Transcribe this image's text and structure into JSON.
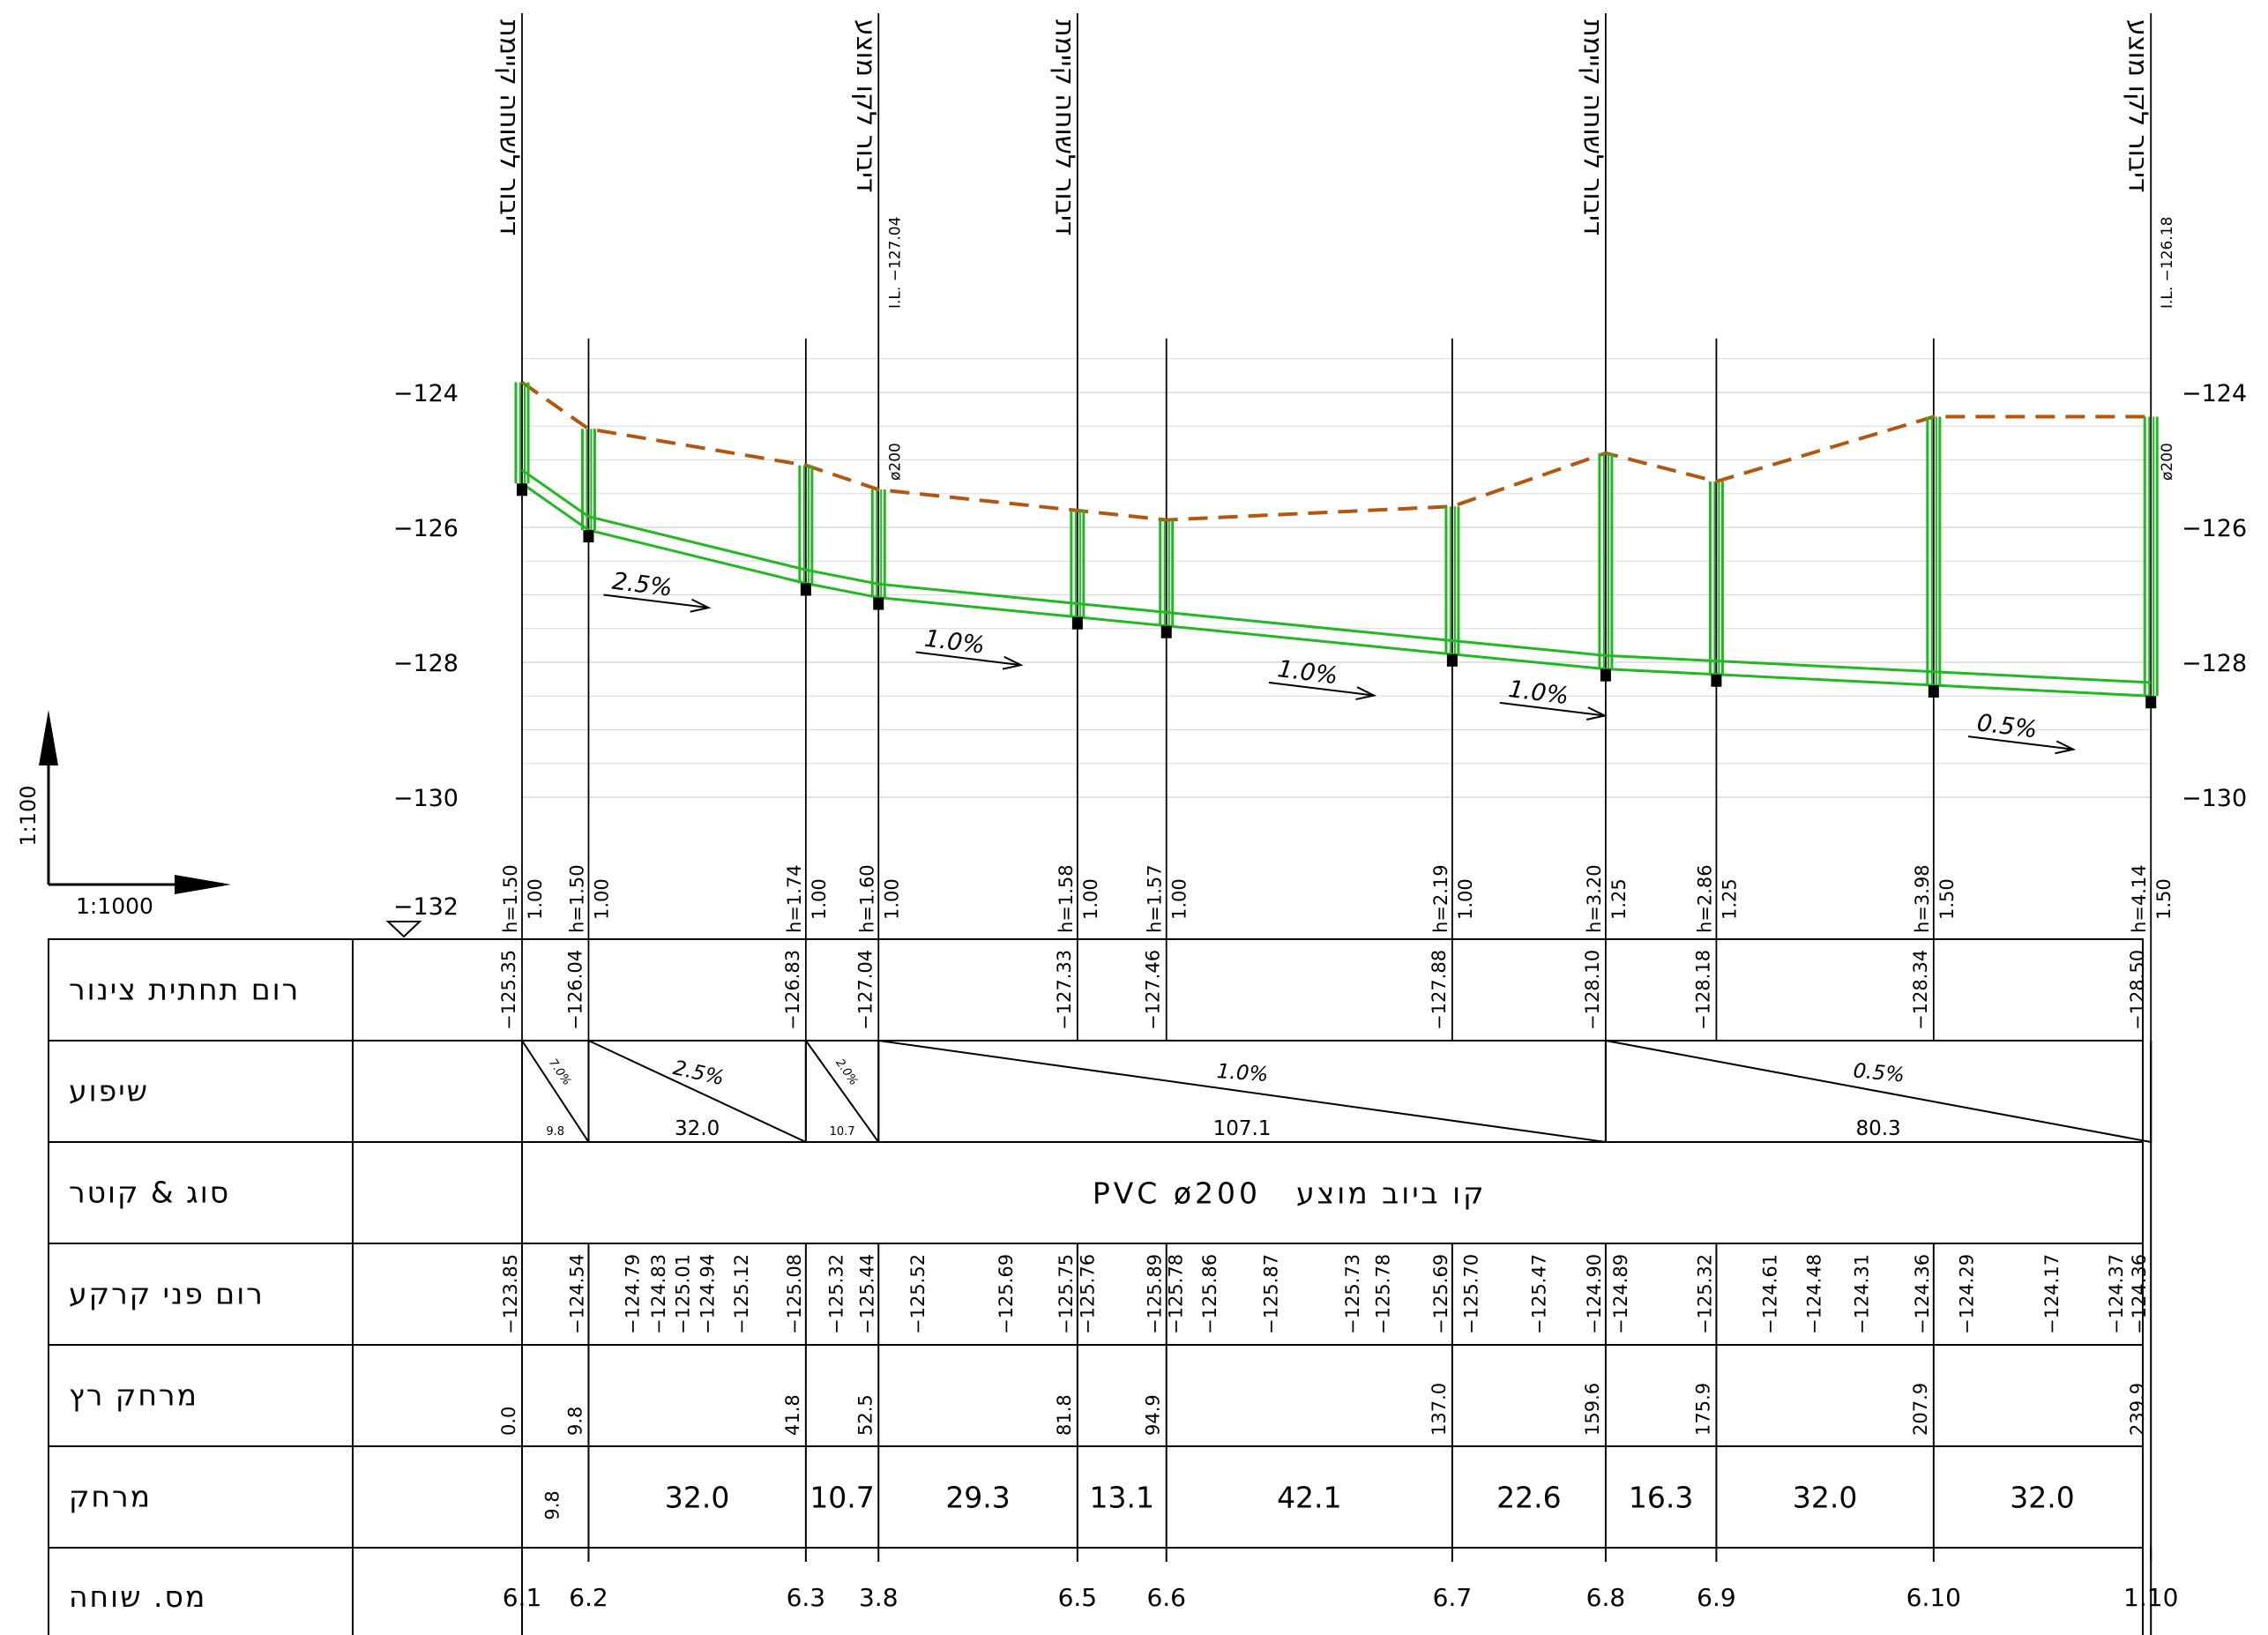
{
  "scale": {
    "vertical": "1:100",
    "horizontal": "1:1000"
  },
  "axis": {
    "ticks": [
      -124,
      -126,
      -128,
      -130
    ],
    "tick_labels": [
      "−124",
      "−126",
      "−128",
      "−130"
    ],
    "bottom_label": "−132"
  },
  "manholes": [
    {
      "id": "6.1",
      "dist": 0.0,
      "ground": -123.85,
      "invert": -125.35,
      "h": "h=1.50",
      "depth": "1.00",
      "label": "דיבור לשוחה קיימת"
    },
    {
      "id": "6.2",
      "dist": 9.8,
      "ground": -124.54,
      "invert": -126.04,
      "h": "h=1.50",
      "depth": "1.00",
      "label": ""
    },
    {
      "id": "6.3",
      "dist": 41.8,
      "ground": -125.08,
      "invert": -126.83,
      "h": "h=1.74",
      "depth": "1.00",
      "label": ""
    },
    {
      "id": "3.8",
      "dist": 52.5,
      "ground": -125.44,
      "invert": -127.04,
      "h": "h=1.60",
      "depth": "1.00",
      "label": "דיבור לקו מוצע",
      "il": "I.L. −127.04",
      "dia": "ø200"
    },
    {
      "id": "6.5",
      "dist": 81.8,
      "ground": -125.75,
      "invert": -127.33,
      "h": "h=1.58",
      "depth": "1.00",
      "label": "דיבור לשוחה קיימת"
    },
    {
      "id": "6.6",
      "dist": 94.9,
      "ground": -125.89,
      "invert": -127.46,
      "h": "h=1.57",
      "depth": "1.00",
      "label": ""
    },
    {
      "id": "6.7",
      "dist": 137.0,
      "ground": -125.69,
      "invert": -127.88,
      "h": "h=2.19",
      "depth": "1.00",
      "label": ""
    },
    {
      "id": "6.8",
      "dist": 159.6,
      "ground": -124.9,
      "invert": -128.1,
      "h": "h=3.20",
      "depth": "1.25",
      "label": "דיבור לשוחה קיימת"
    },
    {
      "id": "6.9",
      "dist": 175.9,
      "ground": -125.32,
      "invert": -128.18,
      "h": "h=2.86",
      "depth": "1.25",
      "label": ""
    },
    {
      "id": "6.10",
      "dist": 207.9,
      "ground": -124.36,
      "invert": -128.34,
      "h": "h=3.98",
      "depth": "1.50",
      "label": ""
    },
    {
      "id": "1.10",
      "dist": 239.9,
      "ground": -124.36,
      "invert": -128.5,
      "h": "h=4.14",
      "depth": "1.50",
      "label": "דיבור לקו מוצע",
      "il": "I.L. −126.18",
      "dia": "ø200"
    }
  ],
  "ground_labels": [
    {
      "dist": 0.0,
      "value": "−123.85"
    },
    {
      "dist": 9.8,
      "value": "−124.54"
    },
    {
      "dist": 18.0,
      "value": "−124.79"
    },
    {
      "dist": 21.8,
      "value": "−124.83"
    },
    {
      "dist": 25.4,
      "value": "−125.01"
    },
    {
      "dist": 29.0,
      "value": "−124.94"
    },
    {
      "dist": 34.0,
      "value": "−125.12"
    },
    {
      "dist": 41.8,
      "value": "−125.08"
    },
    {
      "dist": 48.0,
      "value": "−125.32"
    },
    {
      "dist": 52.5,
      "value": "−125.44"
    },
    {
      "dist": 60.0,
      "value": "−125.52"
    },
    {
      "dist": 73.0,
      "value": "−125.69"
    },
    {
      "dist": 81.8,
      "value": "−125.75"
    },
    {
      "dist": 85.0,
      "value": "−125.76"
    },
    {
      "dist": 94.9,
      "value": "−125.89"
    },
    {
      "dist": 98.0,
      "value": "−125.78"
    },
    {
      "dist": 103.0,
      "value": "−125.86"
    },
    {
      "dist": 112.0,
      "value": "−125.87"
    },
    {
      "dist": 124.0,
      "value": "−125.73"
    },
    {
      "dist": 128.5,
      "value": "−125.78"
    },
    {
      "dist": 137.0,
      "value": "−125.69"
    },
    {
      "dist": 141.5,
      "value": "−125.70"
    },
    {
      "dist": 151.5,
      "value": "−125.47"
    },
    {
      "dist": 159.6,
      "value": "−124.90"
    },
    {
      "dist": 163.5,
      "value": "−124.89"
    },
    {
      "dist": 175.9,
      "value": "−125.32"
    },
    {
      "dist": 185.5,
      "value": "−124.61"
    },
    {
      "dist": 192.0,
      "value": "−124.48"
    },
    {
      "dist": 199.0,
      "value": "−124.31"
    },
    {
      "dist": 207.9,
      "value": "−124.36"
    },
    {
      "dist": 214.5,
      "value": "−124.29"
    },
    {
      "dist": 227.0,
      "value": "−124.17"
    },
    {
      "dist": 236.5,
      "value": "−124.37"
    },
    {
      "dist": 239.9,
      "value": "−124.36"
    }
  ],
  "slope_sections": [
    {
      "from": 0.0,
      "to": 9.8,
      "slope": "7.0%",
      "length": "9.8",
      "small": true
    },
    {
      "from": 9.8,
      "to": 41.8,
      "slope": "2.5%",
      "length": "32.0",
      "small": false
    },
    {
      "from": 41.8,
      "to": 52.5,
      "slope": "2.0%",
      "length": "10.7",
      "small": true
    },
    {
      "from": 52.5,
      "to": 159.6,
      "slope": "1.0%",
      "length": "107.1",
      "small": false
    },
    {
      "from": 159.6,
      "to": 239.9,
      "slope": "0.5%",
      "length": "80.3",
      "small": false
    }
  ],
  "profile_slope_labels": [
    {
      "dist": 12.0,
      "elev": -127.0,
      "text": "2.5%"
    },
    {
      "dist": 58.0,
      "elev": -127.85,
      "text": "1.0%"
    },
    {
      "dist": 110.0,
      "elev": -128.3,
      "text": "1.0%"
    },
    {
      "dist": 144.0,
      "elev": -128.6,
      "text": "1.0%"
    },
    {
      "dist": 213.0,
      "elev": -129.1,
      "text": "0.5%"
    }
  ],
  "distances": [
    "9.8",
    "32.0",
    "10.7",
    "29.3",
    "13.1",
    "42.1",
    "22.6",
    "16.3",
    "32.0",
    "32.0"
  ],
  "cumulative_distances": [
    "0.0",
    "9.8",
    "41.8",
    "52.5",
    "81.8",
    "94.9",
    "137.0",
    "159.6",
    "175.9",
    "207.9",
    "239.9"
  ],
  "pipe_type": "PVC ø200",
  "pipe_desc": "קו ביוב מוצע",
  "row_labels": [
    "רום תחתית צינור",
    "שיפוע",
    "סוג & קוטר",
    "רום פני קרקע",
    "מרחק רץ",
    "מרחק",
    "מס. שוחה"
  ],
  "colors": {
    "pipe": "#22b822",
    "ground": "#b5560f",
    "grid": "#d9d9d9",
    "line": "#000000"
  }
}
